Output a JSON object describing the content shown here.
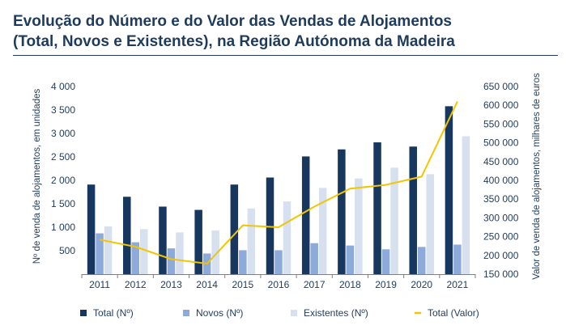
{
  "title_line1": "Evolução do Número e do Valor das Vendas de Alojamentos",
  "title_line2": "(Total, Novos e Existentes), na Região Autónoma da Madeira",
  "chart_data": {
    "type": "bar",
    "categories": [
      "2011",
      "2012",
      "2013",
      "2014",
      "2015",
      "2016",
      "2017",
      "2018",
      "2019",
      "2020",
      "2021"
    ],
    "series": [
      {
        "name": "Total (Nº)",
        "kind": "bar",
        "axis": "left",
        "color": "#17375e",
        "values": [
          1910,
          1650,
          1440,
          1370,
          1910,
          2060,
          2510,
          2660,
          2810,
          2720,
          3580
        ]
      },
      {
        "name": "Novos (Nº)",
        "kind": "bar",
        "axis": "left",
        "color": "#8eaadb",
        "values": [
          870,
          680,
          550,
          440,
          510,
          510,
          660,
          610,
          530,
          580,
          630
        ]
      },
      {
        "name": "Existentes (Nº)",
        "kind": "bar",
        "axis": "left",
        "color": "#d6e0ef",
        "values": [
          1020,
          960,
          890,
          930,
          1400,
          1550,
          1840,
          2040,
          2270,
          2130,
          2940
        ]
      },
      {
        "name": "Total (Valor)",
        "kind": "line",
        "axis": "right",
        "color": "#f2c500",
        "values": [
          242000,
          223000,
          190000,
          178000,
          280000,
          275000,
          330000,
          378000,
          388000,
          410000,
          610000
        ]
      }
    ],
    "ylabel": "Nº de venda de alojamentos, em unidades",
    "y2label": "Valor de venda de alojamentos, milhares de euros",
    "ylim": [
      0,
      4000
    ],
    "y2lim": [
      150000,
      650000
    ],
    "yticks": [
      500,
      1000,
      1500,
      2000,
      2500,
      3000,
      3500,
      4000
    ],
    "yticklabels": [
      "500",
      "1 000",
      "1 500",
      "2 000",
      "2 500",
      "3 000",
      "3 500",
      "4 000"
    ],
    "y2ticks": [
      150000,
      200000,
      250000,
      300000,
      350000,
      400000,
      450000,
      500000,
      550000,
      600000,
      650000
    ],
    "y2ticklabels": [
      "150 000",
      "200 000",
      "250 000",
      "300 000",
      "350 000",
      "400 000",
      "450 000",
      "500 000",
      "550 000",
      "600 000",
      "650 000"
    ],
    "grid": false,
    "legend_position": "bottom"
  }
}
